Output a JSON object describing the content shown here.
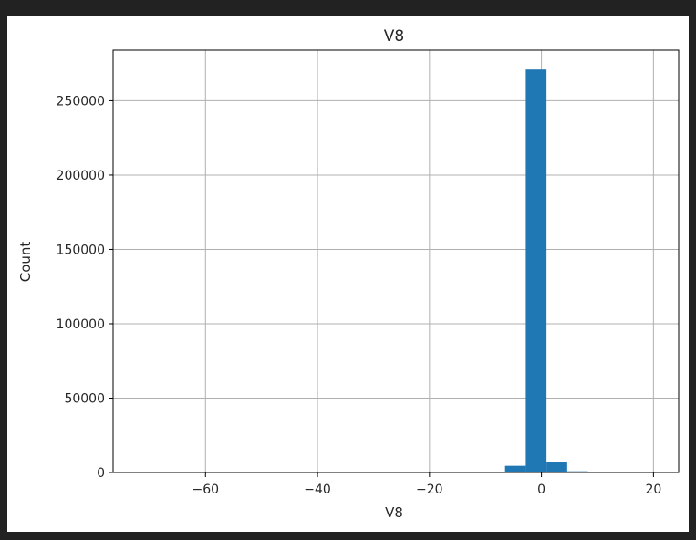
{
  "chart_data": {
    "type": "bar",
    "title": "V8",
    "xlabel": "V8",
    "ylabel": "Count",
    "xlim": [
      -76.5,
      24.5
    ],
    "ylim": [
      0,
      284000
    ],
    "grid": true,
    "legend": "none",
    "bar_color": "#1f77b4",
    "bins": [
      {
        "x0": -73.2,
        "x1": -69.5,
        "count": 2
      },
      {
        "x0": -13.9,
        "x1": -10.2,
        "count": 200
      },
      {
        "x0": -10.2,
        "x1": -6.5,
        "count": 500
      },
      {
        "x0": -6.5,
        "x1": -2.8,
        "count": 4500
      },
      {
        "x0": -2.8,
        "x1": 0.9,
        "count": 271000
      },
      {
        "x0": 0.9,
        "x1": 4.6,
        "count": 7000
      },
      {
        "x0": 4.6,
        "x1": 8.3,
        "count": 800
      },
      {
        "x0": 8.3,
        "x1": 12.0,
        "count": 100
      },
      {
        "x0": 12.0,
        "x1": 15.7,
        "count": 20
      },
      {
        "x0": 15.7,
        "x1": 19.4,
        "count": 5
      }
    ],
    "x_ticks": [
      {
        "value": -60,
        "label": "−60"
      },
      {
        "value": -40,
        "label": "−40"
      },
      {
        "value": -20,
        "label": "−20"
      },
      {
        "value": 0,
        "label": "0"
      },
      {
        "value": 20,
        "label": "20"
      }
    ],
    "y_ticks": [
      {
        "value": 0,
        "label": "0"
      },
      {
        "value": 50000,
        "label": "50000"
      },
      {
        "value": 100000,
        "label": "100000"
      },
      {
        "value": 150000,
        "label": "150000"
      },
      {
        "value": 200000,
        "label": "200000"
      },
      {
        "value": 250000,
        "label": "250000"
      }
    ]
  }
}
